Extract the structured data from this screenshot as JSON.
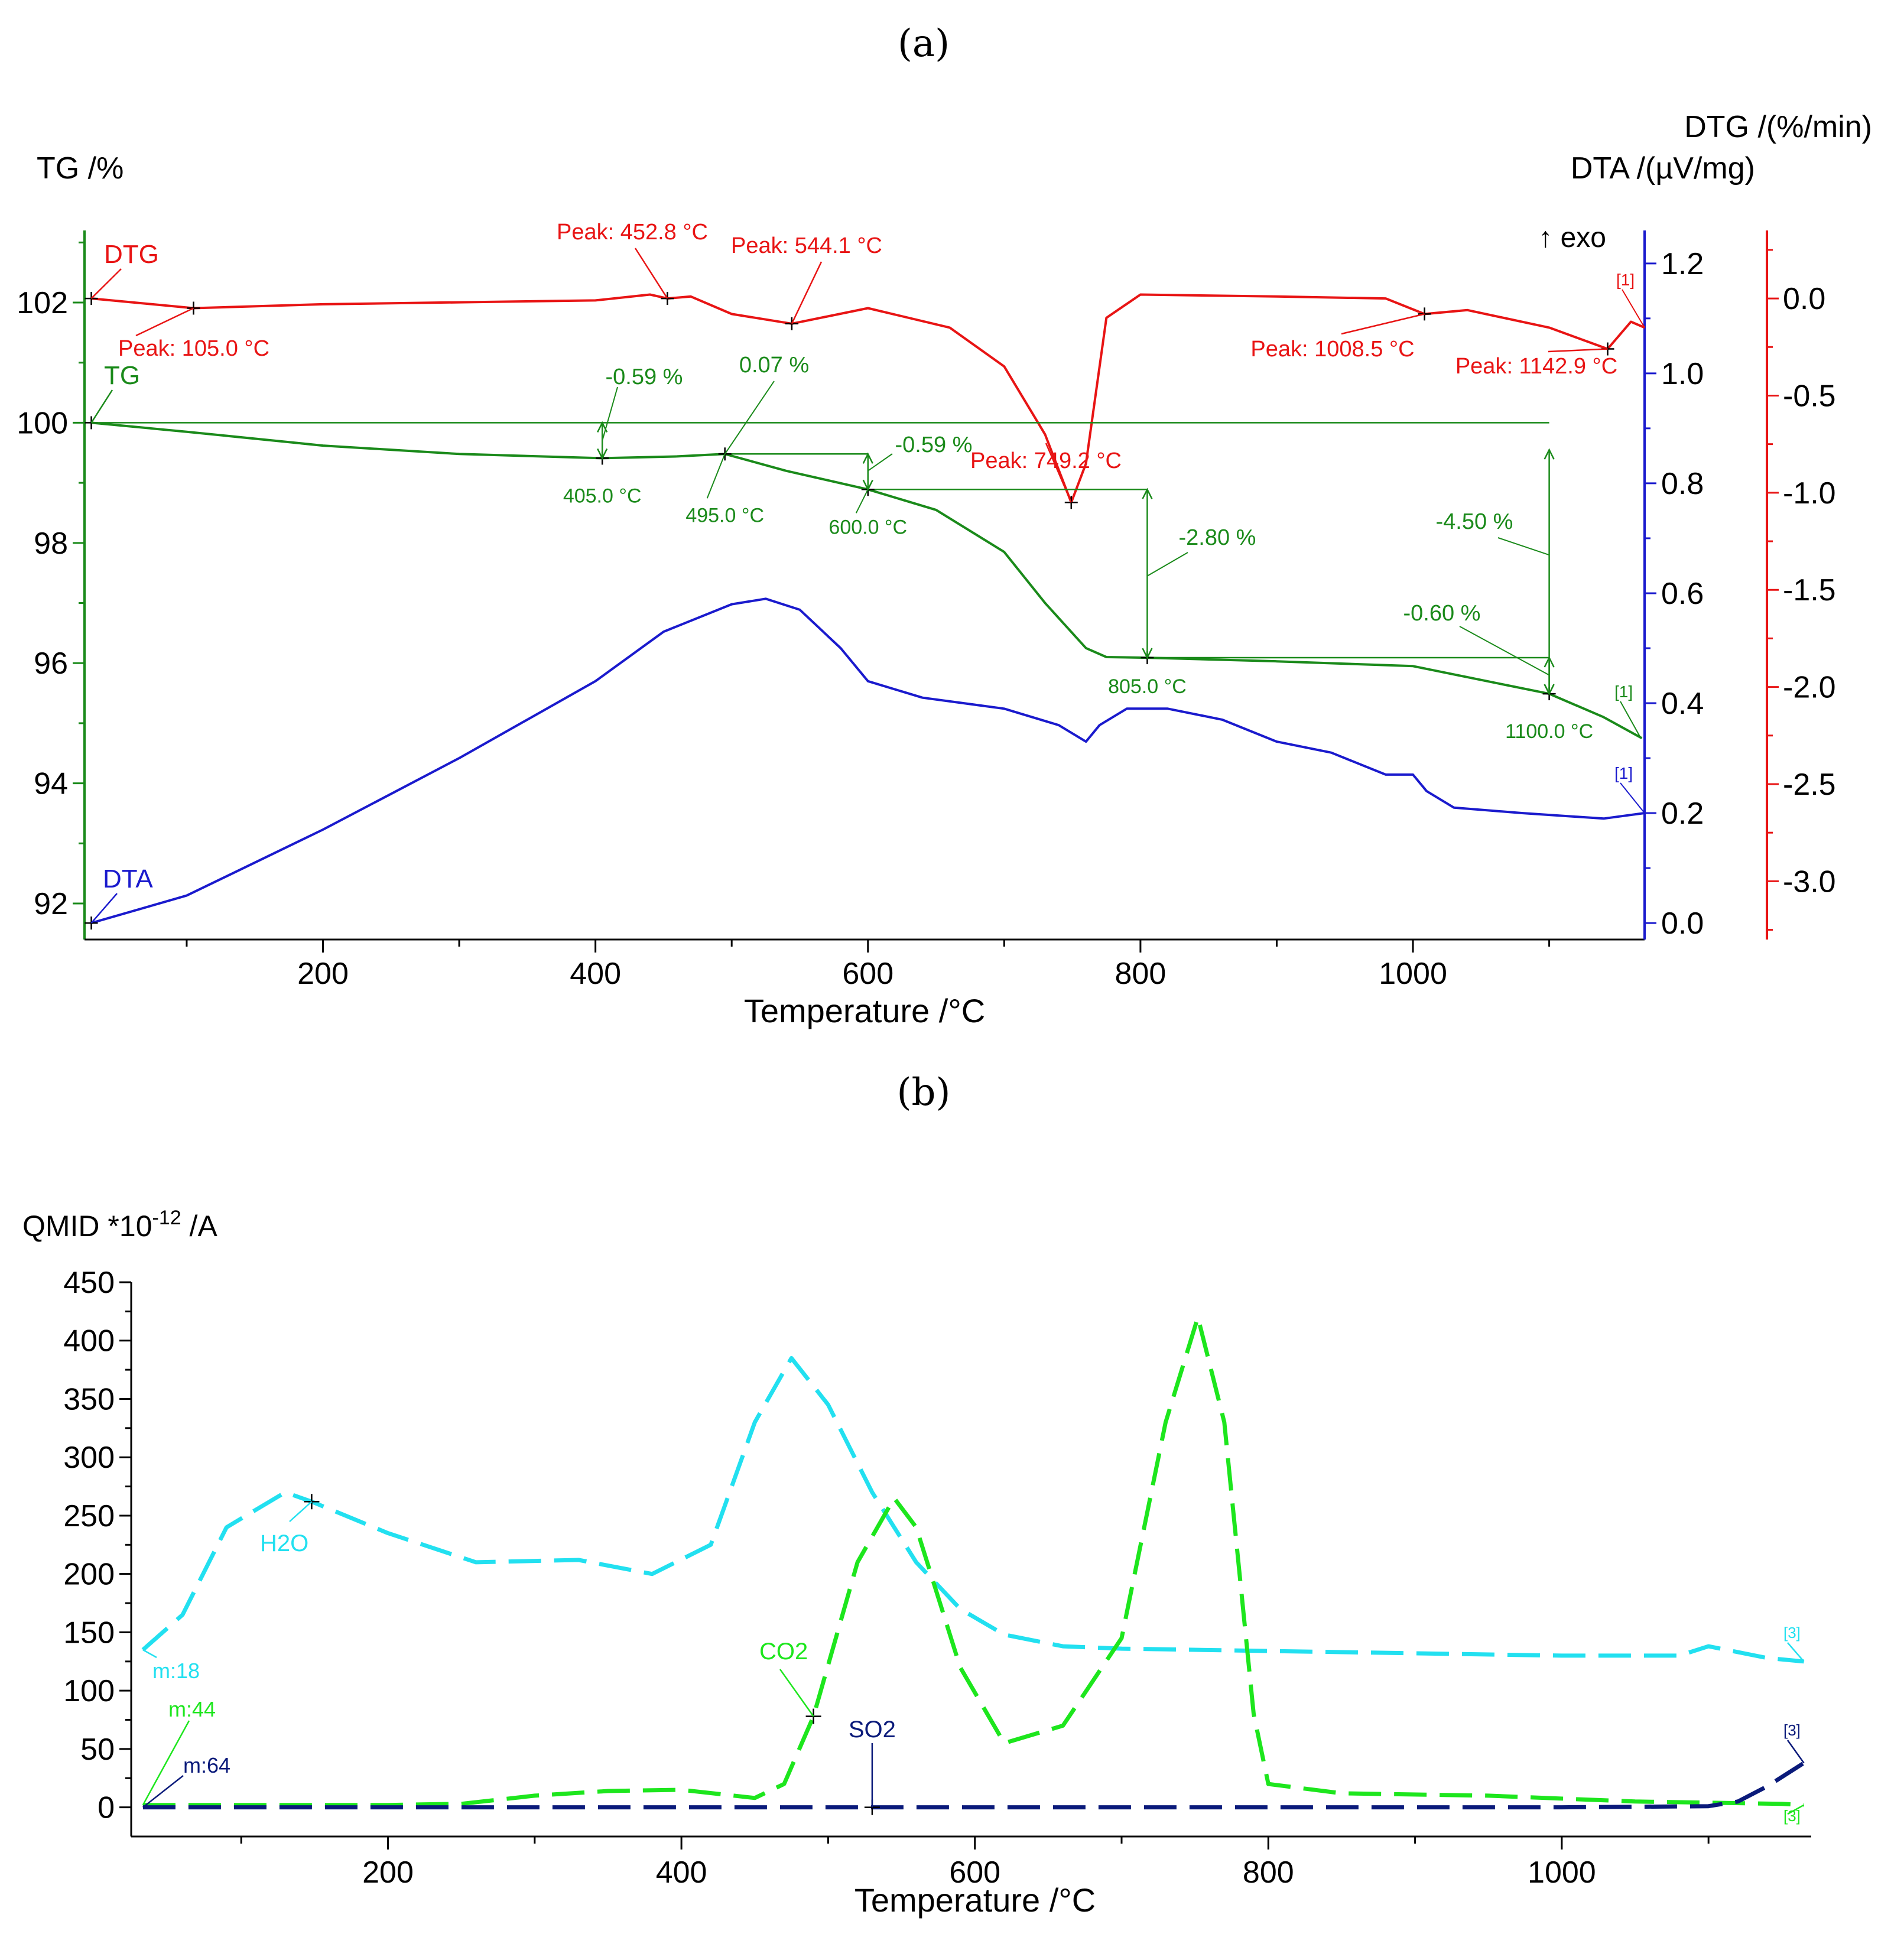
{
  "chart_data": [
    {
      "panel_label": "(a)",
      "type": "line",
      "xlabel": "Temperature /°C",
      "xlim": [
        25,
        1170
      ],
      "xticks": [
        200,
        400,
        600,
        800,
        1000
      ],
      "left_axis": {
        "label": "TG /%",
        "ylim": [
          91.4,
          103.2
        ],
        "ticks": [
          92,
          94,
          96,
          98,
          100,
          102
        ]
      },
      "right_axis_1": {
        "label": "DTA /(µV/mg)",
        "ylim": [
          -0.03,
          1.26
        ],
        "ticks": [
          "0.0",
          "0.2",
          "0.4",
          "0.6",
          "0.8",
          "1.0",
          "1.2"
        ],
        "tick_values": [
          0,
          0.2,
          0.4,
          0.6,
          0.8,
          1.0,
          1.2
        ]
      },
      "right_axis_2": {
        "label": "DTG /(%/min)",
        "ylim": [
          -3.3,
          0.35
        ],
        "ticks": [
          "0.0",
          "-0.5",
          "-1.0",
          "-1.5",
          "-2.0",
          "-2.5",
          "-3.0"
        ],
        "tick_values": [
          0,
          -0.5,
          -1.0,
          -1.5,
          -2.0,
          -2.5,
          -3.0
        ]
      },
      "exo_label": "↑ exo",
      "series": [
        {
          "name": "TG",
          "color": "#1a8a1a",
          "axis": "left",
          "label": "TG",
          "end_label": "[1]",
          "x": [
            30,
            100,
            200,
            300,
            405,
            460,
            495,
            540,
            600,
            650,
            700,
            730,
            760,
            775,
            805,
            900,
            1000,
            1050,
            1100,
            1140,
            1168
          ],
          "y": [
            100.0,
            99.85,
            99.62,
            99.48,
            99.41,
            99.44,
            99.48,
            99.2,
            98.89,
            98.55,
            97.85,
            97.0,
            96.25,
            96.1,
            96.09,
            96.03,
            95.95,
            95.72,
            95.49,
            95.1,
            94.75
          ]
        },
        {
          "name": "DTA",
          "color": "#1a1acd",
          "axis": "right_axis_1",
          "label": "DTA",
          "end_label": "[1]",
          "x": [
            30,
            100,
            200,
            300,
            400,
            450,
            500,
            525,
            550,
            580,
            600,
            640,
            700,
            740,
            760,
            770,
            790,
            820,
            860,
            900,
            940,
            980,
            1000,
            1010,
            1030,
            1080,
            1140,
            1170
          ],
          "y": [
            0.0,
            0.05,
            0.17,
            0.3,
            0.44,
            0.53,
            0.58,
            0.59,
            0.57,
            0.5,
            0.44,
            0.41,
            0.39,
            0.36,
            0.33,
            0.36,
            0.39,
            0.39,
            0.37,
            0.33,
            0.31,
            0.27,
            0.27,
            0.24,
            0.21,
            0.2,
            0.19,
            0.2
          ]
        },
        {
          "name": "DTG",
          "color": "#e81414",
          "axis": "right_axis_2",
          "label": "DTG",
          "end_label": "[1]",
          "x": [
            30,
            105,
            200,
            300,
            400,
            440,
            452.8,
            470,
            500,
            544.1,
            600,
            660,
            700,
            730,
            749.2,
            760,
            775,
            800,
            900,
            980,
            1008.5,
            1040,
            1100,
            1142.9,
            1160,
            1170
          ],
          "y": [
            0.0,
            -0.05,
            -0.03,
            -0.02,
            -0.01,
            0.02,
            0.0,
            0.01,
            -0.08,
            -0.13,
            -0.05,
            -0.15,
            -0.35,
            -0.7,
            -1.05,
            -0.85,
            -0.1,
            0.02,
            0.01,
            0.0,
            -0.08,
            -0.06,
            -0.15,
            -0.26,
            -0.12,
            -0.15
          ]
        }
      ],
      "annotations": {
        "dtg_peaks": [
          "Peak: 105.0 °C",
          "Peak: 452.8 °C",
          "Peak: 544.1 °C",
          "Peak: 749.2 °C",
          "Peak: 1008.5 °C",
          "Peak: 1142.9 °C"
        ],
        "tg_temperatures": [
          "405.0 °C",
          "495.0 °C",
          "600.0 °C",
          "805.0 °C",
          "1100.0 °C"
        ],
        "tg_mass_changes": [
          "-0.59 %",
          "0.07 %",
          "-0.59 %",
          "-2.80 %",
          "-4.50 %",
          "-0.60 %"
        ]
      }
    },
    {
      "panel_label": "(b)",
      "type": "line",
      "xlabel": "Temperature /°C",
      "ylabel_main": "QMID *10",
      "ylabel_sup": "-12",
      "ylabel_tail": " /A",
      "xlim": [
        25,
        1170
      ],
      "ylim": [
        -25,
        450
      ],
      "xticks": [
        200,
        400,
        600,
        800,
        1000
      ],
      "yticks": [
        0,
        50,
        100,
        150,
        200,
        250,
        300,
        350,
        400,
        450
      ],
      "series": [
        {
          "name": "H2O",
          "mass": "m:18",
          "color": "#22e0f0",
          "end_label": "[3]",
          "x": [
            33,
            60,
            90,
            130,
            148,
            200,
            260,
            330,
            380,
            420,
            450,
            475,
            500,
            530,
            560,
            590,
            620,
            660,
            700,
            800,
            900,
            1000,
            1080,
            1100,
            1140,
            1165
          ],
          "y": [
            135,
            165,
            240,
            270,
            262,
            235,
            210,
            212,
            200,
            225,
            330,
            385,
            345,
            270,
            210,
            170,
            148,
            138,
            136,
            134,
            132,
            130,
            130,
            138,
            128,
            125
          ]
        },
        {
          "name": "CO2",
          "mass": "m:44",
          "color": "#1de61d",
          "end_label": "[3]",
          "x": [
            33,
            100,
            200,
            250,
            300,
            350,
            400,
            450,
            470,
            490,
            520,
            545,
            560,
            590,
            620,
            660,
            700,
            730,
            752,
            770,
            790,
            800,
            850,
            950,
            1050,
            1150,
            1165
          ],
          "y": [
            2,
            2,
            2,
            3,
            10,
            14,
            15,
            8,
            20,
            78,
            210,
            265,
            240,
            120,
            55,
            70,
            145,
            330,
            420,
            330,
            80,
            20,
            12,
            10,
            5,
            3,
            2
          ]
        },
        {
          "name": "SO2",
          "mass": "m:64",
          "color": "#0a1a7a",
          "end_label": "[3]",
          "x": [
            33,
            200,
            400,
            600,
            800,
            1000,
            1100,
            1120,
            1140,
            1165
          ],
          "y": [
            0,
            0,
            0,
            0,
            0,
            0,
            1,
            5,
            18,
            38
          ]
        }
      ]
    }
  ]
}
